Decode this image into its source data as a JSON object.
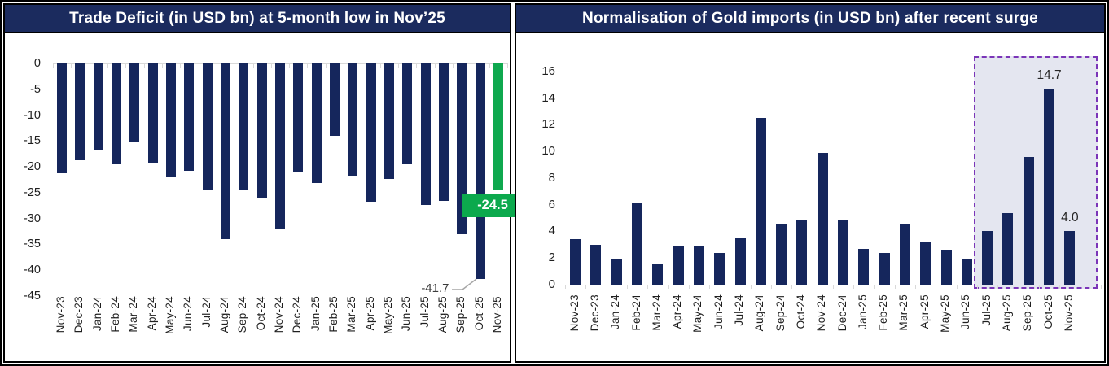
{
  "figure": {
    "kind": "dual-bar-chart-figure"
  },
  "colors": {
    "frame": "#000000",
    "title_bar": "#1b2b5e",
    "bar_navy": "#15265c",
    "bar_green": "#0ea84e",
    "badge_green": "#0ca94d",
    "highlight_fill": "#e4e6f0",
    "highlight_border": "#7b35b8",
    "axis_line": "#d9d9d9",
    "leader_line": "#a6a6a6",
    "tick_label": "#1f1f1f",
    "data_label": "#262626"
  },
  "chart_data": [
    {
      "type": "bar",
      "panel": "left",
      "title": "Trade Deficit (in USD bn) at 5-month low in Nov’25",
      "xlabel": "",
      "ylabel": "",
      "ylim": [
        -45,
        0
      ],
      "yticks": [
        0,
        -5,
        -10,
        -15,
        -20,
        -25,
        -30,
        -35,
        -40,
        -45
      ],
      "grid": false,
      "legend": null,
      "categories": [
        "Nov-23",
        "Dec-23",
        "Jan-24",
        "Feb-24",
        "Mar-24",
        "Apr-24",
        "May-24",
        "Jun-24",
        "Jul-24",
        "Aug-24",
        "Sep-24",
        "Oct-24",
        "Nov-24",
        "Dec-24",
        "Jan-25",
        "Feb-25",
        "Mar-25",
        "Apr-25",
        "May-25",
        "Jun-25",
        "Jul-25",
        "Aug-25",
        "Sep-25",
        "Oct-25",
        "Nov-25"
      ],
      "values": [
        -21.3,
        -18.8,
        -16.6,
        -19.5,
        -15.2,
        -19.2,
        -22.1,
        -20.7,
        -24.5,
        -34.0,
        -24.4,
        -26.1,
        -32.1,
        -21.0,
        -23.2,
        -14.0,
        -21.8,
        -26.8,
        -22.3,
        -19.5,
        -27.4,
        -26.6,
        -33.1,
        -41.7,
        -24.5
      ],
      "highlighted_category": "Nov-25",
      "annotations": [
        {
          "category": "Oct-25",
          "text": "-41.7",
          "style": "callout"
        },
        {
          "category": "Nov-25",
          "text": "-24.5",
          "style": "green-badge"
        }
      ]
    },
    {
      "type": "bar",
      "panel": "right",
      "title": "Normalisation of Gold imports (in USD bn) after recent surge",
      "xlabel": "",
      "ylabel": "",
      "ylim": [
        0,
        16
      ],
      "yticks": [
        16,
        14,
        12,
        10,
        8,
        6,
        4,
        2,
        0
      ],
      "grid": false,
      "legend": null,
      "categories": [
        "Nov-23",
        "Dec-23",
        "Jan-24",
        "Feb-24",
        "Mar-24",
        "Apr-24",
        "May-24",
        "Jun-24",
        "Jul-24",
        "Aug-24",
        "Sep-24",
        "Oct-24",
        "Nov-24",
        "Dec-24",
        "Jan-25",
        "Feb-25",
        "Mar-25",
        "Apr-25",
        "May-25",
        "Jun-25",
        "Jul-25",
        "Aug-25",
        "Sep-25",
        "Oct-25",
        "Nov-25"
      ],
      "values": [
        3.4,
        3.0,
        1.9,
        6.1,
        1.5,
        2.9,
        2.9,
        2.4,
        3.5,
        12.5,
        4.6,
        4.9,
        9.9,
        4.8,
        2.7,
        2.4,
        4.5,
        3.2,
        2.6,
        1.9,
        4.0,
        5.4,
        9.6,
        14.7,
        4.0
      ],
      "highlight_region": {
        "from_category": "Jul-25",
        "to_category": "Nov-25",
        "style": "dashed"
      },
      "data_labels": [
        {
          "category": "Oct-25",
          "text": "14.7"
        },
        {
          "category": "Nov-25",
          "text": "4.0"
        }
      ]
    }
  ]
}
